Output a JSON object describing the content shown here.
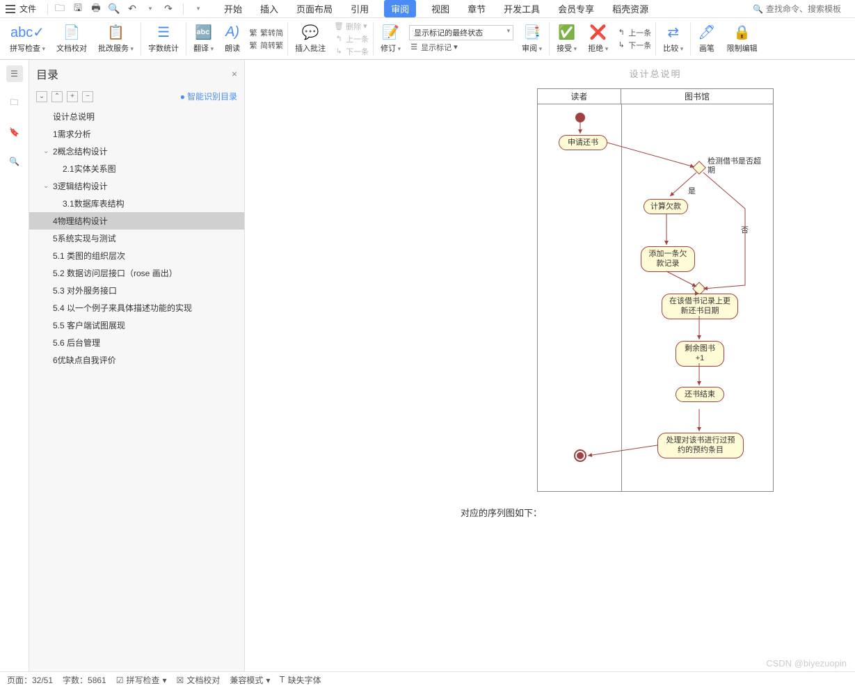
{
  "menubar": {
    "file": "文件",
    "qat_icons": [
      "folder-icon",
      "save-icon",
      "print-icon",
      "preview-icon",
      "undo-icon",
      "redo-icon"
    ]
  },
  "tabs": {
    "items": [
      "开始",
      "插入",
      "页面布局",
      "引用",
      "审阅",
      "视图",
      "章节",
      "开发工具",
      "会员专享",
      "稻壳资源"
    ],
    "active_index": 4
  },
  "search_placeholder": "查找命令、搜索模板",
  "ribbon": {
    "spellcheck": "拼写检查",
    "doccompare": "文档校对",
    "reviewservice": "批改服务",
    "wordcount": "字数统计",
    "translate": "翻译",
    "readaloud": "朗读",
    "trad2simp": "繁转简",
    "simp2trad": "简转繁",
    "insertcomment": "插入批注",
    "delete": "删除",
    "prev": "上一条",
    "next": "下一条",
    "revise": "修订",
    "trackstate": "显示标记的最终状态",
    "showmarkup": "显示标记",
    "reviewpane": "审阅",
    "accept": "接受",
    "reject": "拒绝",
    "prev2": "上一条",
    "next2": "下一条",
    "compare": "比较",
    "brush": "画笔",
    "restrict": "限制编辑"
  },
  "toc": {
    "title": "目录",
    "smart": "智能识别目录",
    "items": [
      {
        "label": "设计总说明",
        "indent": 1,
        "chevron": ""
      },
      {
        "label": "1需求分析",
        "indent": 1,
        "chevron": ""
      },
      {
        "label": "2概念结构设计",
        "indent": 1,
        "chevron": "⌄"
      },
      {
        "label": "2.1实体关系图",
        "indent": 2,
        "chevron": ""
      },
      {
        "label": "3逻辑结构设计",
        "indent": 1,
        "chevron": "⌄"
      },
      {
        "label": "3.1数据库表结构",
        "indent": 2,
        "chevron": ""
      },
      {
        "label": "4物理结构设计",
        "indent": 1,
        "chevron": "",
        "selected": true
      },
      {
        "label": "5系统实现与测试",
        "indent": 1,
        "chevron": ""
      },
      {
        "label": "5.1  类图的组织层次",
        "indent": 1,
        "chevron": ""
      },
      {
        "label": "5.2  数据访问层接口（rose 画出）",
        "indent": 1,
        "chevron": ""
      },
      {
        "label": "5.3  对外服务接口",
        "indent": 1,
        "chevron": ""
      },
      {
        "label": "5.4  以一个例子来具体描述功能的实现",
        "indent": 1,
        "chevron": ""
      },
      {
        "label": "5.5  客户端试图展现",
        "indent": 1,
        "chevron": ""
      },
      {
        "label": "5.6  后台管理",
        "indent": 1,
        "chevron": ""
      },
      {
        "label": "6优缺点自我评价",
        "indent": 1,
        "chevron": ""
      }
    ]
  },
  "document": {
    "header_partial": "设计总说明",
    "swimlanes": [
      "读者",
      "图书馆"
    ],
    "nodes": {
      "n1": "申请还书",
      "decision_label": "检测借书是否超期",
      "yes": "是",
      "no": "否",
      "n2": "计算欠款",
      "n3": "添加一条欠款记录",
      "n4": "在该借书记录上更新还书日期",
      "n5": "剩余图书+1",
      "n6": "还书结束",
      "n7": "处理对该书进行过预约的预约条目"
    },
    "text_after": "对应的序列图如下：",
    "colors": {
      "node_fill": "#fffbd6",
      "node_border": "#a04040",
      "arrow": "#a04040",
      "swim_border": "#888888"
    }
  },
  "statusbar": {
    "page": "页面：32/51",
    "words": "字数：5861",
    "spellcheck": "拼写检查",
    "doccompare": "文档校对",
    "compat": "兼容模式",
    "missingfont": "缺失字体"
  },
  "watermark": "CSDN @biyezuopin"
}
